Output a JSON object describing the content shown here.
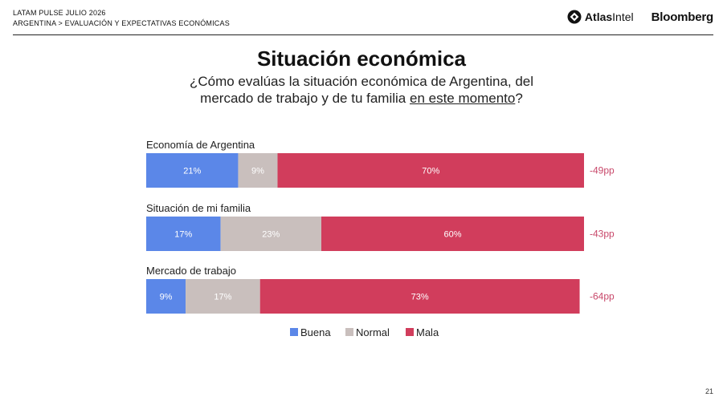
{
  "header": {
    "eyebrow_line1": "LATAM PULSE JULIO 2026",
    "eyebrow_line2": "ARGENTINA > EVALUACIÓN Y EXPECTATIVAS ECONÓMICAS",
    "logo_atlas_part1": "Atlas",
    "logo_atlas_part2": "Intel",
    "logo_bloomberg": "Bloomberg"
  },
  "title": "Situación económica",
  "subtitle": {
    "line1": "¿Cómo evalúas la situación económica de Argentina, del",
    "line2_pre": "mercado de trabajo y de tu familia ",
    "line2_underlined": "en este momento",
    "line2_post": "?"
  },
  "chart_data": {
    "type": "bar",
    "orientation": "horizontal",
    "stacked": true,
    "normalized_to": 100,
    "categories": [
      "Economía de Argentina",
      "Situación de mi familia",
      "Mercado de trabajo"
    ],
    "series": [
      {
        "name": "Buena",
        "color": "#5b87e8",
        "values": [
          21,
          17,
          9
        ],
        "labels": [
          "21%",
          "17%",
          "9%"
        ]
      },
      {
        "name": "Normal",
        "color": "#c9bfbd",
        "values": [
          9,
          23,
          17
        ],
        "labels": [
          "9%",
          "23%",
          "17%"
        ]
      },
      {
        "name": "Mala",
        "color": "#d13d5c",
        "values": [
          70,
          60,
          73
        ],
        "labels": [
          "70%",
          "60%",
          "73%"
        ]
      }
    ],
    "net_labels": [
      "-49pp",
      "-43pp",
      "-64pp"
    ],
    "net_color": "#c8486a",
    "legend_position": "bottom",
    "grid": false
  },
  "page_number": "21"
}
